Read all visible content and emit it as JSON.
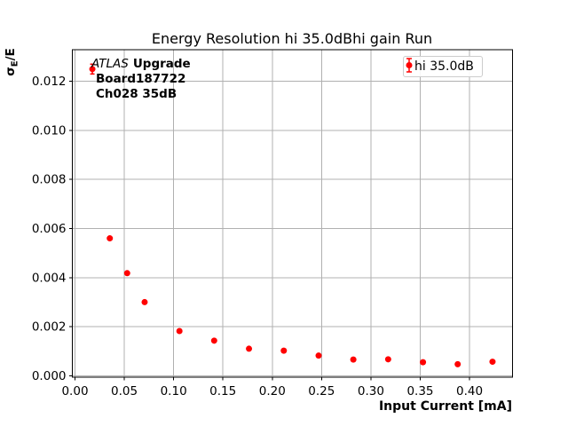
{
  "chart_data": {
    "type": "scatter",
    "title": "Energy Resolution hi 35.0dBhi gain Run",
    "xlabel": "Input Current [mA]",
    "ylabel": "σE/E",
    "ylabel_parts": {
      "sigma": "σ",
      "sub": "E",
      "rest": "/E"
    },
    "xlim": [
      -0.0027,
      0.4436
    ],
    "ylim": [
      -6e-05,
      0.01329
    ],
    "xticks": [
      0.0,
      0.05,
      0.1,
      0.15,
      0.2,
      0.25,
      0.3,
      0.35,
      0.4
    ],
    "xtick_labels": [
      "0.00",
      "0.05",
      "0.10",
      "0.15",
      "0.20",
      "0.25",
      "0.30",
      "0.35",
      "0.40"
    ],
    "yticks": [
      0.0,
      0.002,
      0.004,
      0.006,
      0.008,
      0.01,
      0.012
    ],
    "ytick_labels": [
      "0.000",
      "0.002",
      "0.004",
      "0.006",
      "0.008",
      "0.010",
      "0.012"
    ],
    "grid": true,
    "grid_color": "#b0b0b0",
    "frame_color": "#000000",
    "legend_position": "upper right",
    "series": [
      {
        "name": "hi 35.0dB",
        "color": "#ff0000",
        "marker": "circle",
        "points": [
          {
            "x": 0.0176,
            "y": 0.0125,
            "yerr": 0.0002
          },
          {
            "x": 0.0353,
            "y": 0.0056
          },
          {
            "x": 0.0529,
            "y": 0.00418
          },
          {
            "x": 0.0706,
            "y": 0.003
          },
          {
            "x": 0.1059,
            "y": 0.00182
          },
          {
            "x": 0.1411,
            "y": 0.00143
          },
          {
            "x": 0.1764,
            "y": 0.0011
          },
          {
            "x": 0.2117,
            "y": 0.00102
          },
          {
            "x": 0.247,
            "y": 0.00082
          },
          {
            "x": 0.2822,
            "y": 0.00066
          },
          {
            "x": 0.3175,
            "y": 0.00067
          },
          {
            "x": 0.3528,
            "y": 0.00055
          },
          {
            "x": 0.388,
            "y": 0.00047
          },
          {
            "x": 0.4233,
            "y": 0.00057
          }
        ]
      }
    ],
    "annotation": {
      "line1_italic": "ATLAS",
      "line1_bold": "Upgrade",
      "line2": "Board187722",
      "line3": "Ch028 35dB"
    }
  }
}
